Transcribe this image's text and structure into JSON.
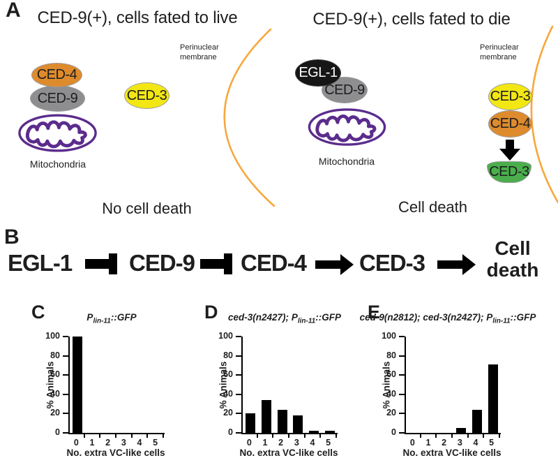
{
  "colors": {
    "protein-orange": "#DE8B2D",
    "protein-gray": "#8E8E91",
    "protein-yellow": "#F2E713",
    "protein-green": "#4AAE4C",
    "protein-black": "#161616",
    "membrane-orange": "#F7A73C",
    "mito-purple": "#5B2C8D",
    "bar-black": "#000000"
  },
  "panel_a": {
    "label": "A",
    "left": {
      "title": "CED-9(+), cells fated to live",
      "membrane_label_line1": "Perinuclear",
      "membrane_label_line2": "membrane",
      "ced4": "CED-4",
      "ced9": "CED-9",
      "ced3": "CED-3",
      "mitochondria_label": "Mitochondria",
      "outcome": "No cell death"
    },
    "right": {
      "title": "CED-9(+), cells fated to die",
      "membrane_label_line1": "Perinuclear",
      "membrane_label_line2": "membrane",
      "egl1": "EGL-1",
      "ced9": "CED-9",
      "ced3_inactive": "CED-3",
      "ced4": "CED-4",
      "ced3_active": "CED-3",
      "mitochondria_label": "Mitochondria",
      "outcome": "Cell death"
    }
  },
  "panel_b": {
    "label": "B",
    "node1": "EGL-1",
    "node2": "CED-9",
    "node3": "CED-4",
    "node4": "CED-3",
    "terminal_line1": "Cell",
    "terminal_line2": "death"
  },
  "chart_data": [
    {
      "type": "bar",
      "panel_label": "C",
      "title_prefix": "",
      "title_p": "P",
      "title_sub": "lin-11",
      "title_suffix": "::GFP",
      "categories": [
        "0",
        "1",
        "2",
        "3",
        "4",
        "5"
      ],
      "values": [
        100,
        0,
        0,
        0,
        0,
        0
      ],
      "xlabel": "No. extra VC-like cells",
      "ylabel": "% Animals",
      "ylim": [
        0,
        100
      ],
      "yticks": [
        0,
        20,
        40,
        60,
        80,
        100
      ],
      "grid": false,
      "legend": "none",
      "bar_color": "#000000"
    },
    {
      "type": "bar",
      "panel_label": "D",
      "title_prefix": "ced-3(n2427); ",
      "title_p": "P",
      "title_sub": "lin-11",
      "title_suffix": "::GFP",
      "categories": [
        "0",
        "1",
        "2",
        "3",
        "4",
        "5"
      ],
      "values": [
        20,
        34,
        24,
        18,
        2,
        2
      ],
      "xlabel": "No. extra VC-like cells",
      "ylabel": "% Animals",
      "ylim": [
        0,
        100
      ],
      "yticks": [
        0,
        20,
        40,
        60,
        80,
        100
      ],
      "grid": false,
      "legend": "none",
      "bar_color": "#000000"
    },
    {
      "type": "bar",
      "panel_label": "E",
      "title_prefix": "ced-9(n2812); ced-3(n2427); ",
      "title_p": "P",
      "title_sub": "lin-11",
      "title_suffix": "::GFP",
      "categories": [
        "0",
        "1",
        "2",
        "3",
        "4",
        "5"
      ],
      "values": [
        0,
        0,
        0,
        5,
        24,
        71
      ],
      "xlabel": "No. extra VC-like cells",
      "ylabel": "% Animals",
      "ylim": [
        0,
        100
      ],
      "yticks": [
        0,
        20,
        40,
        60,
        80,
        100
      ],
      "grid": false,
      "legend": "none",
      "bar_color": "#000000"
    }
  ]
}
